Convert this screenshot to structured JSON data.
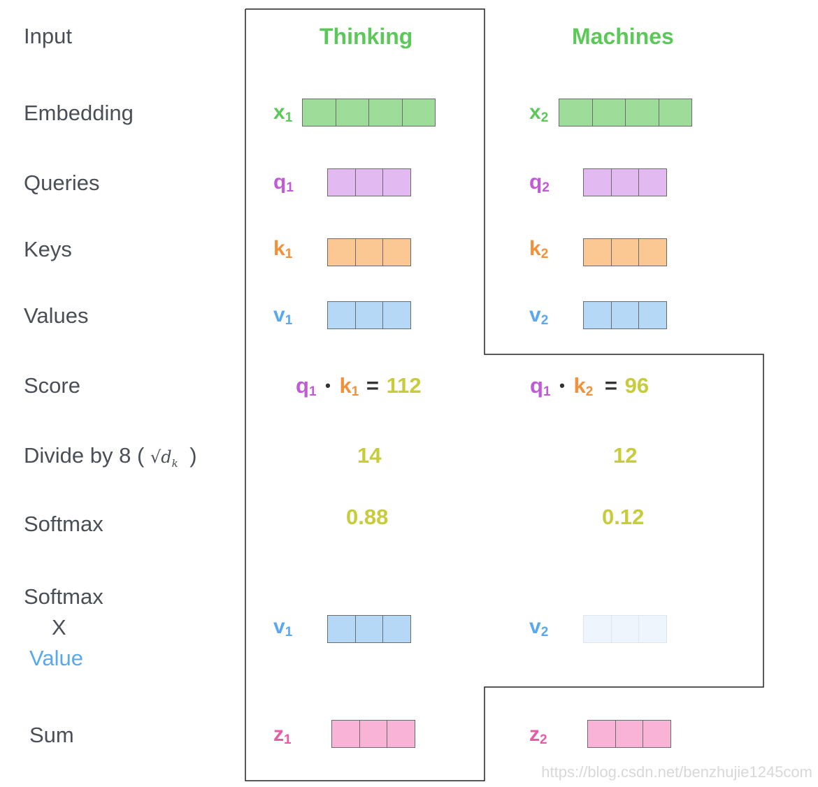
{
  "row_labels": {
    "input": "Input",
    "embedding": "Embedding",
    "queries": "Queries",
    "keys": "Keys",
    "values": "Values",
    "score": "Score",
    "divide": "Divide by 8 (",
    "divide_sqrt": "√d",
    "divide_sub": "k",
    "divide_close": ")",
    "softmax": "Softmax",
    "softmax_x_1": "Softmax",
    "softmax_x_2": "X",
    "softmax_x_3": "Value",
    "sum": "Sum"
  },
  "words": [
    "Thinking",
    "Machines"
  ],
  "symbols": {
    "x1": "x",
    "x2": "x",
    "q1": "q",
    "q2": "q",
    "k1": "k",
    "k2": "k",
    "v1": "v",
    "v2": "v",
    "z1": "z",
    "z2": "z",
    "sub1": "1",
    "sub2": "2"
  },
  "score": {
    "col1": {
      "q": "q",
      "q_sub": "1",
      "dot": "•",
      "k": "k",
      "k_sub": "1",
      "eq": "=",
      "value": "112"
    },
    "col2": {
      "q": "q",
      "q_sub": "1",
      "dot": "•",
      "k": "k",
      "k_sub": "2",
      "eq": "=",
      "value": "96"
    }
  },
  "divided": [
    "14",
    "12"
  ],
  "softmax": [
    "0.88",
    "0.12"
  ],
  "colors": {
    "green": "#5cc85a",
    "purple": "#c05ad6",
    "orange": "#f2913a",
    "blue": "#5aa8ee",
    "pink": "#ea5ba6",
    "yellow": "#c7cc3a",
    "embed_fill": "#9edc99",
    "query_fill": "#e2b9f0",
    "key_fill": "#fbc894",
    "value_fill": "#b6d8f7",
    "value_faded_fill": "#eef5fd",
    "sum_fill": "#f9b3d6"
  },
  "watermark": "https://blog.csdn.net/benzhujie1245com"
}
